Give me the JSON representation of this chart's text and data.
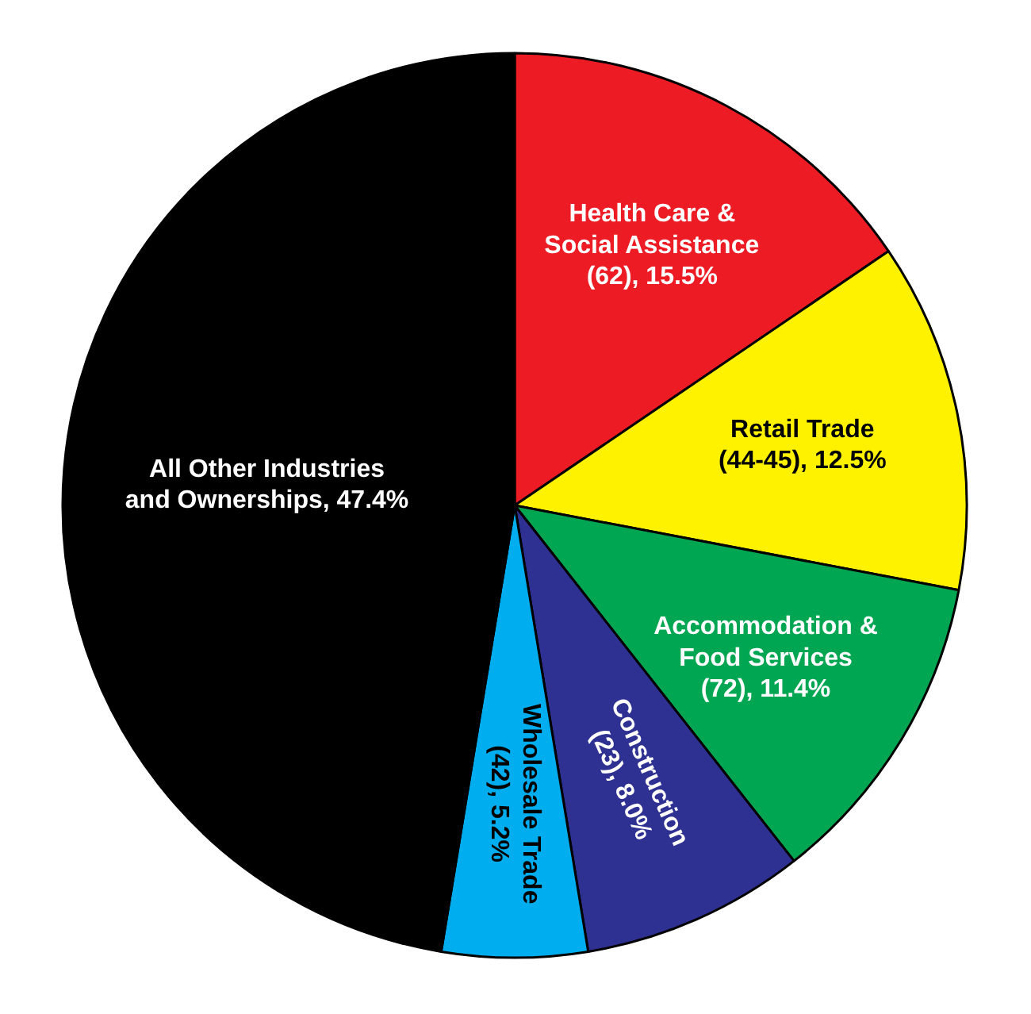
{
  "chart_data": {
    "type": "pie",
    "categories": [
      "Health Care & Social Assistance (62)",
      "Retail Trade (44-45)",
      "Accommodation & Food Services (72)",
      "Construction (23)",
      "Wholesale Trade (42)",
      "All Other Industries and Ownerships"
    ],
    "values": [
      15.5,
      12.5,
      11.4,
      8.0,
      5.2,
      47.4
    ],
    "colors": [
      "#ed1c24",
      "#fff200",
      "#00a651",
      "#2e3192",
      "#00aeef",
      "#000000"
    ],
    "value_labels": [
      "15.5%",
      "12.5%",
      "11.4%",
      "8.0%",
      "5.2%",
      "47.4%"
    ]
  }
}
